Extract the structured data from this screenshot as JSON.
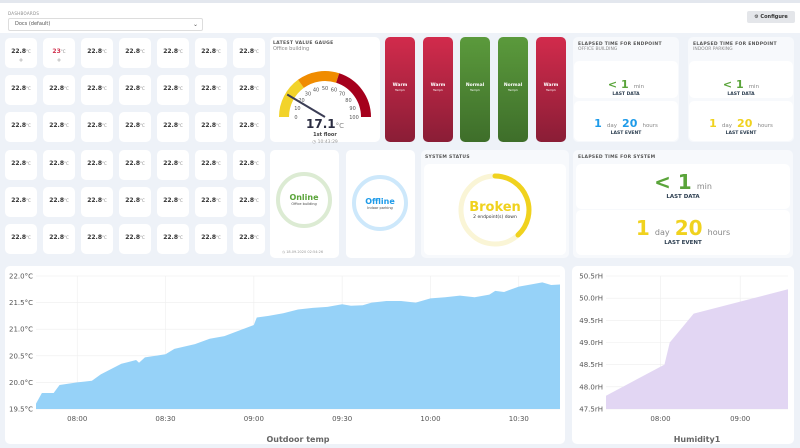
{
  "header": {
    "dashboards_label": "DASHBOARDS",
    "selected_dashboard": "Docs (default)",
    "configure_label": "Configure",
    "configure_icon": "gear-icon"
  },
  "tiles": {
    "unit": "°C",
    "values": [
      "22.8",
      "23",
      "22.8",
      "22.8",
      "22.8",
      "22.8",
      "22.8",
      "22.8",
      "22.8",
      "22.8",
      "22.8",
      "22.8",
      "22.8",
      "22.8",
      "22.8",
      "22.8",
      "22.8",
      "22.8",
      "22.8",
      "22.8",
      "22.8",
      "22.8",
      "22.8",
      "22.8",
      "22.8",
      "22.8",
      "22.8",
      "22.8",
      "22.8",
      "22.8",
      "22.8",
      "22.8",
      "22.8",
      "22.8",
      "22.8",
      "22.8",
      "22.8",
      "22.8",
      "22.8",
      "22.8",
      "22.8",
      "22.8"
    ],
    "highlight_color": "#d1334f"
  },
  "gauge": {
    "title": "LATEST VALUE GAUGE",
    "subtitle": "Office building",
    "value": "17.1",
    "unit": "°C",
    "label": "1st floor",
    "time": "10:43:29",
    "min": 0,
    "max": 100,
    "ticks": [
      "0",
      "10",
      "20",
      "30",
      "40",
      "50",
      "60",
      "70",
      "80",
      "90",
      "100"
    ],
    "bands": [
      {
        "from": 0,
        "to": 30,
        "color": "#f2d32a"
      },
      {
        "from": 30,
        "to": 60,
        "color": "#f08c00"
      },
      {
        "from": 60,
        "to": 100,
        "color": "#a5001c"
      }
    ]
  },
  "bars": [
    {
      "status": "Warm",
      "name": "Temp1",
      "color": "#c42745"
    },
    {
      "status": "Warm",
      "name": "Temp1",
      "color": "#c42745"
    },
    {
      "status": "Normal",
      "name": "Temp1",
      "color": "#4f8a35"
    },
    {
      "status": "Normal",
      "name": "Temp1",
      "color": "#4f8a35"
    },
    {
      "status": "Warm",
      "name": "Temp1",
      "color": "#c42745"
    }
  ],
  "endpoints": [
    {
      "title": "ELAPSED TIME FOR ENDPOINT",
      "subtitle": "OFFICE BUILDING",
      "data_prefix": "< 1",
      "data_unit": "min",
      "data_label": "LAST DATA",
      "event_days": "1",
      "day_unit": "day",
      "event_hours": "20",
      "hours_unit": "hours",
      "event_label": "LAST EVENT",
      "event_color": "#1e9be9"
    },
    {
      "title": "ELAPSED TIME FOR ENDPOINT",
      "subtitle": "INDOOR PARKING",
      "data_prefix": "< 1",
      "data_unit": "min",
      "data_label": "LAST DATA",
      "event_days": "1",
      "day_unit": "day",
      "event_hours": "20",
      "hours_unit": "hours",
      "event_label": "LAST EVENT",
      "event_color": "#f0d21e"
    }
  ],
  "system_elapsed": {
    "title": "ELAPSED TIME FOR SYSTEM",
    "data_prefix": "< 1",
    "data_unit": "min",
    "data_label": "LAST DATA",
    "event_days": "1",
    "day_unit": "day",
    "event_hours": "20",
    "hours_unit": "hours",
    "event_label": "LAST EVENT"
  },
  "status_online": {
    "status": "Online",
    "name": "Office building",
    "time": "18.09.2020 02:54:26",
    "color": "#5aa43a"
  },
  "status_offline": {
    "status": "Offline",
    "name": "Indoor parking",
    "color": "#1e9be9"
  },
  "system_status": {
    "title": "SYSTEM STATUS",
    "status": "Broken",
    "detail": "2 endpoint(s) down",
    "color": "#f0d21e"
  },
  "chart_data": [
    {
      "type": "area",
      "title": "Outdoor temp",
      "color": "#90d0f8",
      "ylim": [
        19.5,
        22.0
      ],
      "yticks": [
        "19.5°C",
        "20.0°C",
        "20.5°C",
        "21.0°C",
        "21.5°C",
        "22.0°C"
      ],
      "xticks": [
        "08:00",
        "08:30",
        "09:00",
        "09:30",
        "10:00",
        "10:30"
      ],
      "xrange": [
        "07:46",
        "10:44"
      ],
      "grid": true,
      "x": [
        "07:46",
        "07:48",
        "07:52",
        "07:54",
        "08:00",
        "08:05",
        "08:08",
        "08:15",
        "08:20",
        "08:21",
        "08:23",
        "08:30",
        "08:33",
        "08:40",
        "08:45",
        "08:50",
        "09:00",
        "09:01",
        "09:05",
        "09:10",
        "09:15",
        "09:20",
        "09:25",
        "09:30",
        "09:33",
        "09:37",
        "09:40",
        "09:45",
        "09:50",
        "09:55",
        "10:00",
        "10:05",
        "10:10",
        "10:15",
        "10:20",
        "10:22",
        "10:25",
        "10:30",
        "10:35",
        "10:38",
        "10:41",
        "10:44"
      ],
      "y": [
        19.6,
        19.8,
        19.8,
        19.95,
        20.0,
        20.03,
        20.15,
        20.35,
        20.42,
        20.37,
        20.47,
        20.53,
        20.63,
        20.72,
        20.82,
        20.87,
        21.08,
        21.22,
        21.25,
        21.3,
        21.37,
        21.4,
        21.42,
        21.47,
        21.44,
        21.45,
        21.5,
        21.53,
        21.53,
        21.5,
        21.58,
        21.6,
        21.63,
        21.6,
        21.65,
        21.72,
        21.7,
        21.8,
        21.85,
        21.88,
        21.83,
        21.84
      ]
    },
    {
      "type": "area",
      "title": "Humidity1",
      "color": "#e0d4f2",
      "ylim": [
        47.5,
        50.5
      ],
      "yticks": [
        "47.5rH",
        "48.0rH",
        "48.5rH",
        "49.0rH",
        "49.5rH",
        "50.0rH",
        "50.5rH"
      ],
      "xticks": [
        "08:00",
        "09:00"
      ],
      "xrange": [
        "07:19",
        "09:36"
      ],
      "grid": true,
      "x": [
        "07:19",
        "08:03",
        "08:07",
        "08:25",
        "09:36"
      ],
      "y": [
        47.8,
        48.5,
        49.0,
        49.65,
        50.2
      ]
    }
  ]
}
